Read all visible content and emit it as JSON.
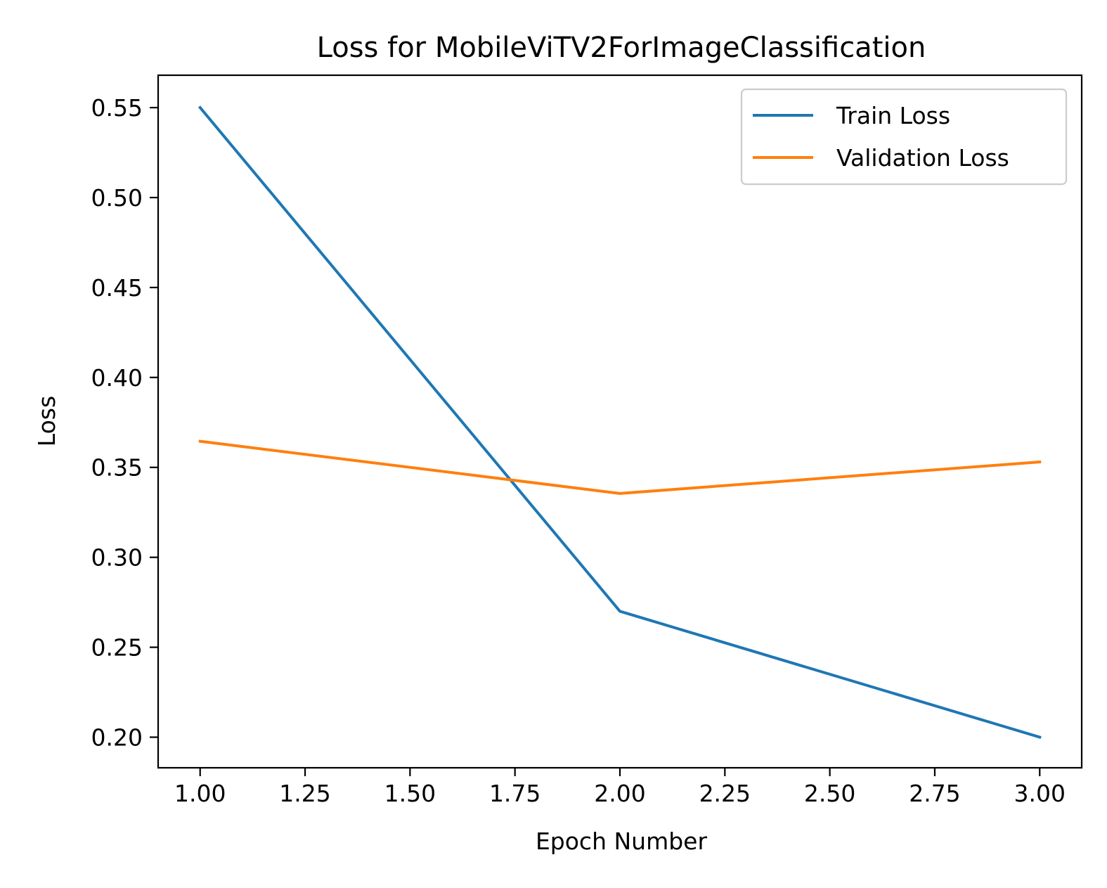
{
  "chart_data": {
    "type": "line",
    "title": "Loss for MobileViTV2ForImageClassification",
    "xlabel": "Epoch Number",
    "ylabel": "Loss",
    "x": [
      1,
      2,
      3
    ],
    "series": [
      {
        "name": "Train Loss",
        "values": [
          0.55,
          0.27,
          0.2
        ],
        "color": "#1f77b4"
      },
      {
        "name": "Validation Loss",
        "values": [
          0.3645,
          0.3355,
          0.353
        ],
        "color": "#ff7f0e"
      }
    ],
    "xlim": [
      0.9,
      3.1
    ],
    "ylim": [
      0.183,
      0.568
    ],
    "xticks": [
      "1.00",
      "1.25",
      "1.50",
      "1.75",
      "2.00",
      "2.25",
      "2.50",
      "2.75",
      "3.00"
    ],
    "yticks": [
      "0.20",
      "0.25",
      "0.30",
      "0.35",
      "0.40",
      "0.45",
      "0.50",
      "0.55"
    ],
    "grid": false,
    "legend_position": "top-right"
  }
}
